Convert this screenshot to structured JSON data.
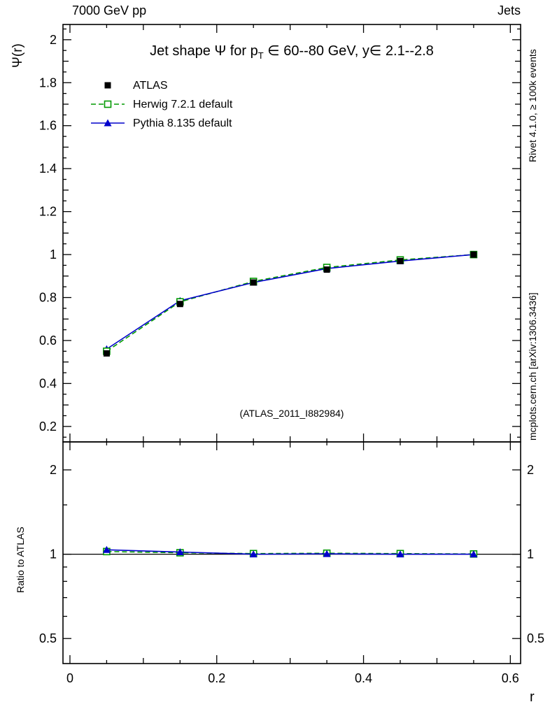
{
  "header": {
    "left": "7000 GeV pp",
    "right": "Jets"
  },
  "side_notes": {
    "rivet": "Rivet 4.1.0, ≥ 100k events",
    "mcplots": "mcplots.cern.ch [arXiv:1306.3436]",
    "watermark": "(ATLAS_2011_I882984)"
  },
  "chart_data": {
    "type": "line",
    "title": {
      "prefix": "Jet shape Ψ for p",
      "sub": "T",
      "suffix": " ∈ 60--80 GeV, y∈ 2.1--2.8"
    },
    "xlabel": "r",
    "ylabel_top": "Ψ(r)",
    "ylabel_bottom": "Ratio to ATLAS",
    "x": [
      0.05,
      0.15,
      0.25,
      0.35,
      0.45,
      0.55
    ],
    "series": [
      {
        "name": "ATLAS",
        "color": "#000000",
        "marker": "square-filled",
        "line": "none",
        "values": [
          0.54,
          0.77,
          0.87,
          0.93,
          0.97,
          1.0
        ]
      },
      {
        "name": "Herwig 7.2.1 default",
        "color": "#009900",
        "marker": "square-open",
        "line": "dashed",
        "values": [
          0.55,
          0.78,
          0.875,
          0.94,
          0.975,
          1.0
        ],
        "ratio": [
          1.022,
          1.012,
          1.005,
          1.008,
          1.005,
          1.002
        ]
      },
      {
        "name": "Pythia 8.135 default",
        "color": "#0000cc",
        "marker": "triangle-filled",
        "line": "solid",
        "values": [
          0.56,
          0.785,
          0.87,
          0.935,
          0.97,
          1.0
        ],
        "ratio": [
          1.037,
          1.018,
          1.0,
          1.003,
          1.0,
          1.0
        ]
      }
    ],
    "axes": {
      "xlim": [
        -0.0095,
        0.614
      ],
      "xticks": [
        0,
        0.2,
        0.4,
        0.6
      ],
      "top": {
        "scale": "linear",
        "ylim": [
          0.128,
          2.071
        ],
        "yticks": [
          0.2,
          0.4,
          0.6,
          0.8,
          1,
          1.2,
          1.4,
          1.6,
          1.8,
          2
        ]
      },
      "bottom": {
        "scale": "log",
        "ylim": [
          0.407,
          2.517
        ],
        "yticks": [
          0.5,
          1,
          2
        ],
        "ref_line": 1
      }
    },
    "legend_position": "top-left",
    "grid": false
  }
}
